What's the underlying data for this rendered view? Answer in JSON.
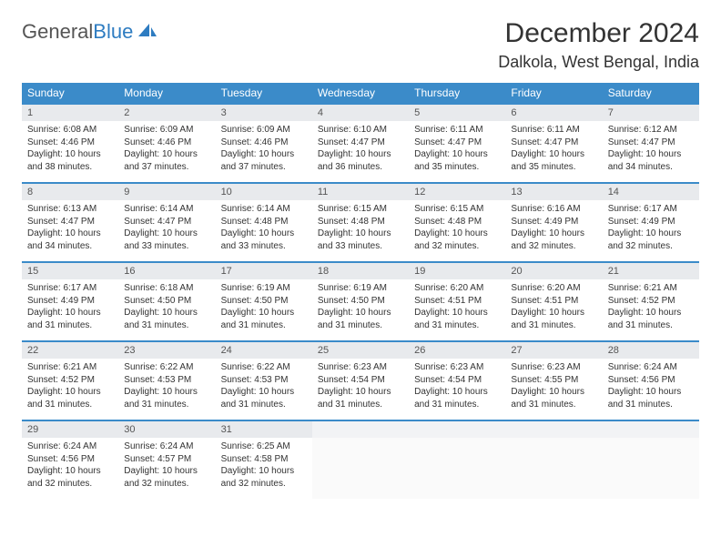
{
  "brand": {
    "part1": "General",
    "part2": "Blue"
  },
  "title": "December 2024",
  "location": "Dalkola, West Bengal, India",
  "colors": {
    "header_bg": "#3b8bc9",
    "header_text": "#ffffff",
    "daynum_bg": "#e8eaed",
    "border": "#3b8bc9",
    "brand_blue": "#2e7cc1"
  },
  "dow": [
    "Sunday",
    "Monday",
    "Tuesday",
    "Wednesday",
    "Thursday",
    "Friday",
    "Saturday"
  ],
  "weeks": [
    [
      {
        "n": "1",
        "sr": "6:08 AM",
        "ss": "4:46 PM",
        "dl": "10 hours and 38 minutes."
      },
      {
        "n": "2",
        "sr": "6:09 AM",
        "ss": "4:46 PM",
        "dl": "10 hours and 37 minutes."
      },
      {
        "n": "3",
        "sr": "6:09 AM",
        "ss": "4:46 PM",
        "dl": "10 hours and 37 minutes."
      },
      {
        "n": "4",
        "sr": "6:10 AM",
        "ss": "4:47 PM",
        "dl": "10 hours and 36 minutes."
      },
      {
        "n": "5",
        "sr": "6:11 AM",
        "ss": "4:47 PM",
        "dl": "10 hours and 35 minutes."
      },
      {
        "n": "6",
        "sr": "6:11 AM",
        "ss": "4:47 PM",
        "dl": "10 hours and 35 minutes."
      },
      {
        "n": "7",
        "sr": "6:12 AM",
        "ss": "4:47 PM",
        "dl": "10 hours and 34 minutes."
      }
    ],
    [
      {
        "n": "8",
        "sr": "6:13 AM",
        "ss": "4:47 PM",
        "dl": "10 hours and 34 minutes."
      },
      {
        "n": "9",
        "sr": "6:14 AM",
        "ss": "4:47 PM",
        "dl": "10 hours and 33 minutes."
      },
      {
        "n": "10",
        "sr": "6:14 AM",
        "ss": "4:48 PM",
        "dl": "10 hours and 33 minutes."
      },
      {
        "n": "11",
        "sr": "6:15 AM",
        "ss": "4:48 PM",
        "dl": "10 hours and 33 minutes."
      },
      {
        "n": "12",
        "sr": "6:15 AM",
        "ss": "4:48 PM",
        "dl": "10 hours and 32 minutes."
      },
      {
        "n": "13",
        "sr": "6:16 AM",
        "ss": "4:49 PM",
        "dl": "10 hours and 32 minutes."
      },
      {
        "n": "14",
        "sr": "6:17 AM",
        "ss": "4:49 PM",
        "dl": "10 hours and 32 minutes."
      }
    ],
    [
      {
        "n": "15",
        "sr": "6:17 AM",
        "ss": "4:49 PM",
        "dl": "10 hours and 31 minutes."
      },
      {
        "n": "16",
        "sr": "6:18 AM",
        "ss": "4:50 PM",
        "dl": "10 hours and 31 minutes."
      },
      {
        "n": "17",
        "sr": "6:19 AM",
        "ss": "4:50 PM",
        "dl": "10 hours and 31 minutes."
      },
      {
        "n": "18",
        "sr": "6:19 AM",
        "ss": "4:50 PM",
        "dl": "10 hours and 31 minutes."
      },
      {
        "n": "19",
        "sr": "6:20 AM",
        "ss": "4:51 PM",
        "dl": "10 hours and 31 minutes."
      },
      {
        "n": "20",
        "sr": "6:20 AM",
        "ss": "4:51 PM",
        "dl": "10 hours and 31 minutes."
      },
      {
        "n": "21",
        "sr": "6:21 AM",
        "ss": "4:52 PM",
        "dl": "10 hours and 31 minutes."
      }
    ],
    [
      {
        "n": "22",
        "sr": "6:21 AM",
        "ss": "4:52 PM",
        "dl": "10 hours and 31 minutes."
      },
      {
        "n": "23",
        "sr": "6:22 AM",
        "ss": "4:53 PM",
        "dl": "10 hours and 31 minutes."
      },
      {
        "n": "24",
        "sr": "6:22 AM",
        "ss": "4:53 PM",
        "dl": "10 hours and 31 minutes."
      },
      {
        "n": "25",
        "sr": "6:23 AM",
        "ss": "4:54 PM",
        "dl": "10 hours and 31 minutes."
      },
      {
        "n": "26",
        "sr": "6:23 AM",
        "ss": "4:54 PM",
        "dl": "10 hours and 31 minutes."
      },
      {
        "n": "27",
        "sr": "6:23 AM",
        "ss": "4:55 PM",
        "dl": "10 hours and 31 minutes."
      },
      {
        "n": "28",
        "sr": "6:24 AM",
        "ss": "4:56 PM",
        "dl": "10 hours and 31 minutes."
      }
    ],
    [
      {
        "n": "29",
        "sr": "6:24 AM",
        "ss": "4:56 PM",
        "dl": "10 hours and 32 minutes."
      },
      {
        "n": "30",
        "sr": "6:24 AM",
        "ss": "4:57 PM",
        "dl": "10 hours and 32 minutes."
      },
      {
        "n": "31",
        "sr": "6:25 AM",
        "ss": "4:58 PM",
        "dl": "10 hours and 32 minutes."
      },
      null,
      null,
      null,
      null
    ]
  ],
  "labels": {
    "sunrise": "Sunrise:",
    "sunset": "Sunset:",
    "daylight": "Daylight:"
  }
}
